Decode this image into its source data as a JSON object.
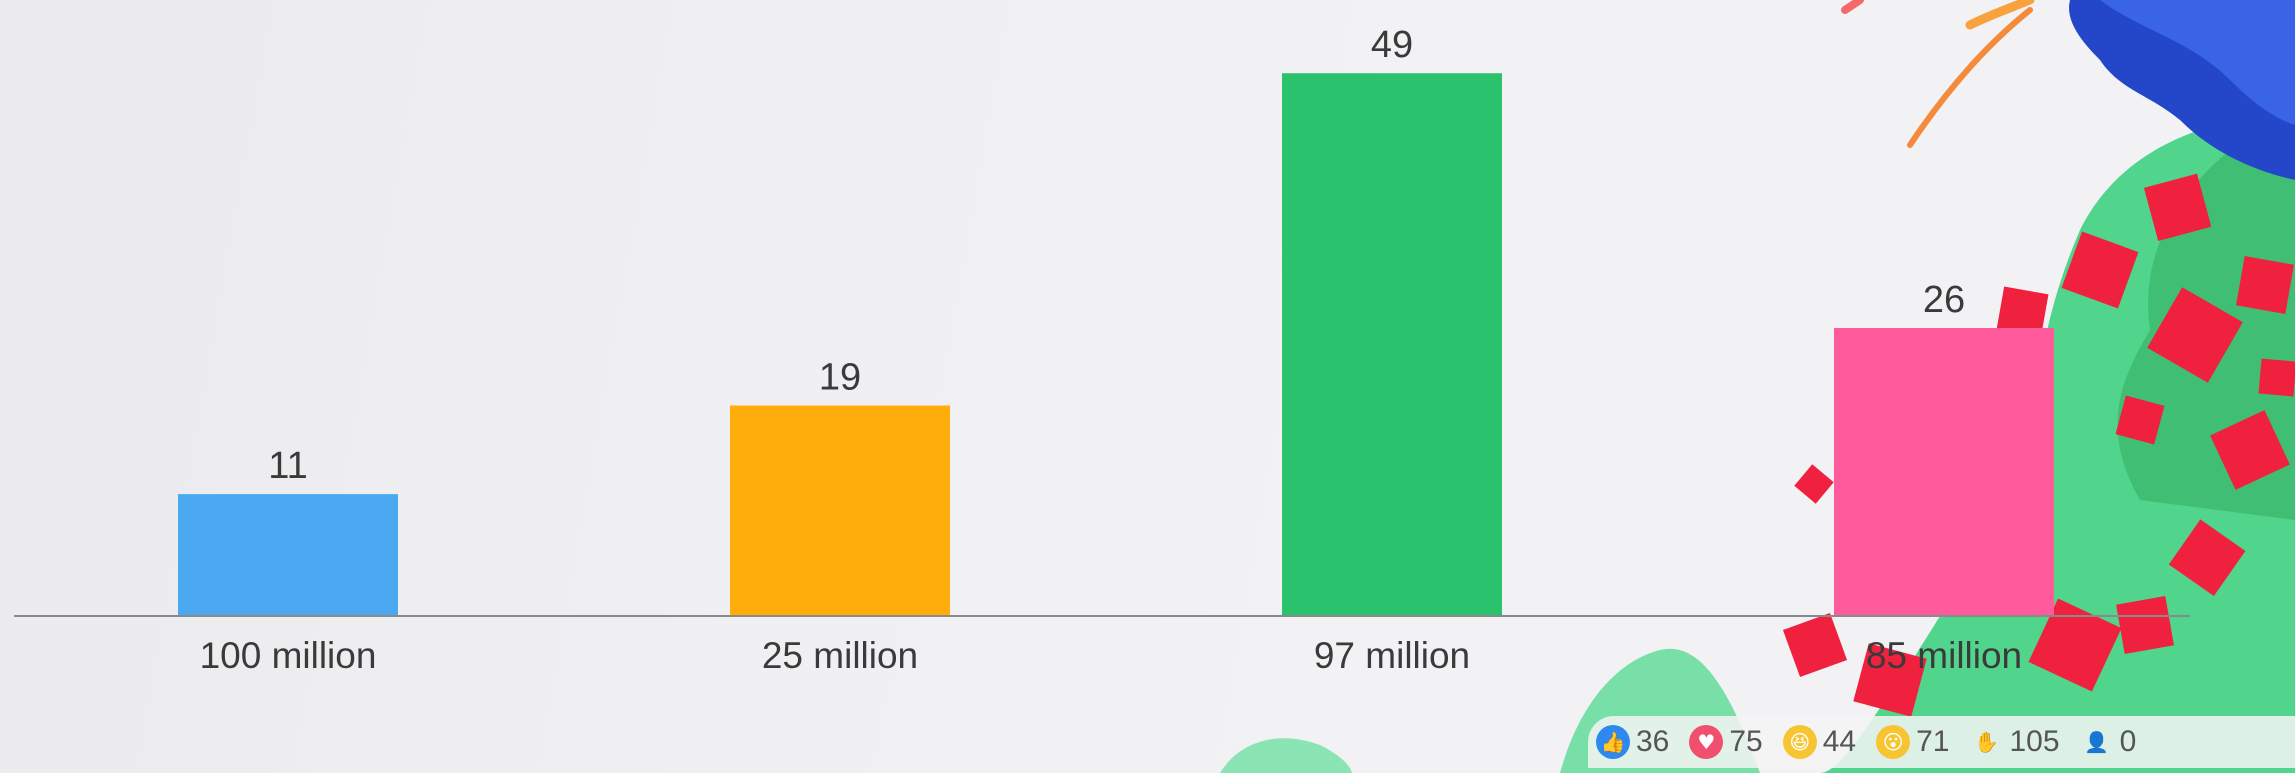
{
  "chart_data": {
    "type": "bar",
    "categories": [
      "100 million",
      "25 million",
      "97 million",
      "85 million"
    ],
    "values": [
      11,
      19,
      49,
      26
    ],
    "colors": [
      "#4aa8f0",
      "#ffad0a",
      "#2bc26e",
      "#ff5a9b"
    ],
    "ylim": [
      0,
      52
    ],
    "grid": false,
    "legend": "none"
  },
  "reactions": [
    {
      "icon": "thumbs-up-icon",
      "glyph": "👍",
      "color": "#2d88f0",
      "count": "36"
    },
    {
      "icon": "heart-icon",
      "glyph": "♥",
      "color": "#f0506e",
      "count": "75"
    },
    {
      "icon": "laughing-face-icon",
      "glyph": "😆",
      "color": "#f7c531",
      "count": "44"
    },
    {
      "icon": "surprised-face-icon",
      "glyph": "😮",
      "color": "#f7c531",
      "count": "71"
    },
    {
      "icon": "raised-hand-icon",
      "glyph": "✋",
      "color": "#333333",
      "count": "105"
    },
    {
      "icon": "participants-icon",
      "glyph": "👤",
      "color": "#333333",
      "count": "0"
    }
  ]
}
